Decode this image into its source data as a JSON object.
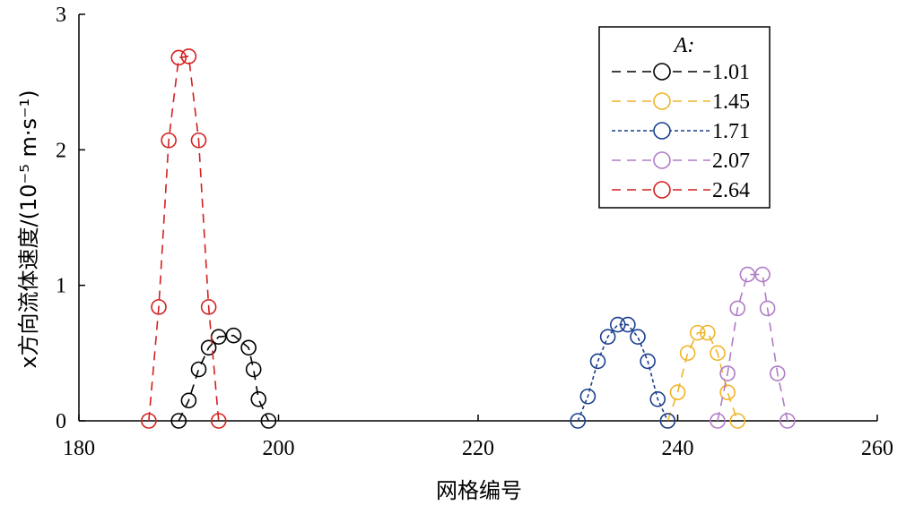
{
  "chart_data": {
    "type": "line",
    "xlabel": "网格编号",
    "ylabel": "x方向流体速度/(10⁻⁵ m·s⁻¹)",
    "xlim": [
      180,
      260
    ],
    "ylim": [
      0,
      3
    ],
    "xticks": [
      180,
      200,
      220,
      240,
      260
    ],
    "yticks": [
      0,
      1,
      2,
      3
    ],
    "grid": false,
    "legend": {
      "title": "A:",
      "placement": "top-right"
    },
    "series": [
      {
        "name": "1.01",
        "color": "#000000",
        "dash": "10,7",
        "x": [
          190,
          191,
          192,
          193,
          194,
          195.5,
          197,
          197.5,
          198,
          199
        ],
        "y": [
          0,
          0.15,
          0.38,
          0.54,
          0.62,
          0.63,
          0.54,
          0.38,
          0.16,
          0
        ]
      },
      {
        "name": "1.45",
        "color": "#f0b429",
        "dash": "10,7",
        "x": [
          239,
          240,
          241,
          242,
          243,
          244,
          245,
          246
        ],
        "y": [
          0,
          0.21,
          0.5,
          0.65,
          0.65,
          0.5,
          0.21,
          0
        ]
      },
      {
        "name": "1.71",
        "color": "#1a3f8f",
        "dash": "4,3",
        "x": [
          230,
          231,
          232,
          233,
          234,
          235,
          236,
          237,
          238,
          239
        ],
        "y": [
          0,
          0.18,
          0.44,
          0.62,
          0.71,
          0.71,
          0.62,
          0.44,
          0.16,
          0
        ]
      },
      {
        "name": "2.07",
        "color": "#b07cc6",
        "dash": "10,7",
        "x": [
          244,
          245,
          246,
          247,
          248.5,
          249,
          250,
          251
        ],
        "y": [
          0,
          0.35,
          0.83,
          1.08,
          1.08,
          0.83,
          0.35,
          0
        ]
      },
      {
        "name": "2.64",
        "color": "#d42020",
        "dash": "10,7",
        "x": [
          187,
          188,
          189,
          190,
          191,
          192,
          193,
          194
        ],
        "y": [
          0,
          0.84,
          2.07,
          2.68,
          2.69,
          2.07,
          0.84,
          0
        ]
      }
    ]
  }
}
